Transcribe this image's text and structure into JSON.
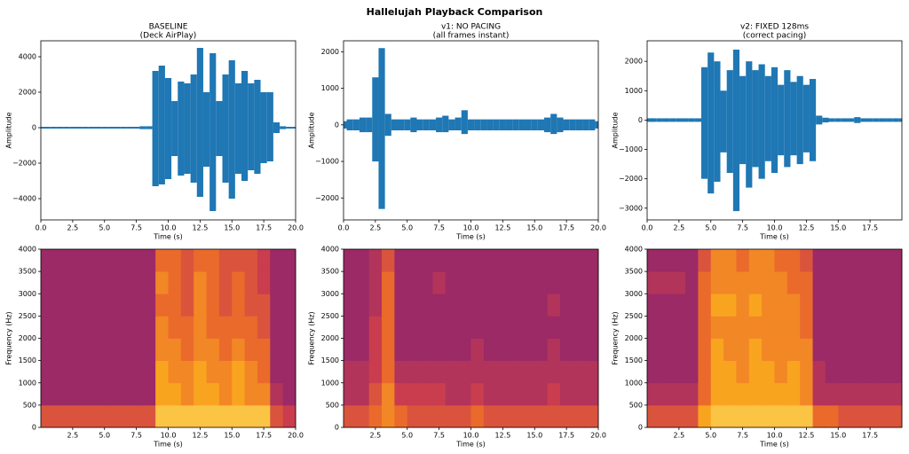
{
  "title": "Hallelujah Playback Comparison",
  "chart_data": [
    {
      "type": "envelope",
      "title": "BASELINE",
      "subtitle": "(Deck AirPlay)",
      "x_label": "Time (s)",
      "y_label": "Amplitude",
      "color": "#1f77b4",
      "x": [
        0,
        0.5,
        1,
        1.5,
        2,
        2.5,
        3,
        3.5,
        4,
        4.5,
        5,
        5.5,
        6,
        6.5,
        7,
        7.5,
        8,
        8.5,
        9,
        9.5,
        10,
        10.5,
        11,
        11.5,
        12,
        12.5,
        13,
        13.5,
        14,
        14.5,
        15,
        15.5,
        16,
        16.5,
        17,
        17.5,
        18,
        18.5,
        19,
        19.5,
        20
      ],
      "upper": [
        50,
        50,
        50,
        50,
        50,
        50,
        50,
        50,
        50,
        50,
        50,
        50,
        50,
        50,
        50,
        50,
        80,
        80,
        3200,
        3500,
        2800,
        1500,
        2600,
        2500,
        3000,
        4500,
        2000,
        4200,
        1500,
        3000,
        3800,
        2500,
        3200,
        2500,
        2700,
        2000,
        2000,
        300,
        80,
        50,
        50
      ],
      "lower": [
        -50,
        -50,
        -50,
        -50,
        -50,
        -50,
        -50,
        -50,
        -50,
        -50,
        -50,
        -50,
        -50,
        -50,
        -50,
        -50,
        -80,
        -80,
        -3300,
        -3200,
        -2900,
        -1600,
        -2700,
        -2600,
        -3100,
        -3900,
        -2200,
        -4700,
        -1600,
        -3100,
        -4000,
        -2600,
        -3000,
        -2400,
        -2600,
        -2000,
        -1900,
        -300,
        -80,
        -50,
        -50
      ],
      "xlim": [
        0,
        20
      ],
      "ylim": [
        -5200,
        4900
      ],
      "xticks": [
        {
          "value": 0,
          "label": "0.0"
        },
        {
          "value": 2.5,
          "label": "2.5"
        },
        {
          "value": 5,
          "label": "5.0"
        },
        {
          "value": 7.5,
          "label": "7.5"
        },
        {
          "value": 10,
          "label": "10.0"
        },
        {
          "value": 12.5,
          "label": "12.5"
        },
        {
          "value": 15,
          "label": "15.0"
        },
        {
          "value": 17.5,
          "label": "17.5"
        },
        {
          "value": 20,
          "label": "20.0"
        }
      ],
      "yticks": [
        {
          "value": -4000,
          "label": "−4000"
        },
        {
          "value": -2000,
          "label": "−2000"
        },
        0,
        2000,
        4000
      ]
    },
    {
      "type": "envelope",
      "title": "v1: NO PACING",
      "subtitle": "(all frames instant)",
      "x_label": "Time (s)",
      "y_label": "Amplitude",
      "color": "#1f77b4",
      "x": [
        0,
        0.5,
        1,
        1.5,
        2,
        2.5,
        3,
        3.5,
        4,
        4.5,
        5,
        5.5,
        6,
        6.5,
        7,
        7.5,
        8,
        8.5,
        9,
        9.5,
        10,
        10.5,
        11,
        11.5,
        12,
        12.5,
        13,
        13.5,
        14,
        14.5,
        15,
        15.5,
        16,
        16.5,
        17,
        17.5,
        18,
        18.5,
        19,
        19.5,
        20
      ],
      "upper": [
        100,
        150,
        150,
        200,
        200,
        1300,
        2100,
        300,
        150,
        150,
        150,
        200,
        150,
        150,
        150,
        200,
        250,
        150,
        200,
        400,
        150,
        150,
        150,
        150,
        150,
        150,
        150,
        150,
        150,
        150,
        150,
        150,
        200,
        300,
        200,
        150,
        150,
        150,
        150,
        150,
        100
      ],
      "lower": [
        -100,
        -150,
        -150,
        -200,
        -200,
        -1000,
        -2300,
        -300,
        -150,
        -150,
        -150,
        -200,
        -150,
        -150,
        -150,
        -200,
        -200,
        -150,
        -150,
        -250,
        -150,
        -150,
        -150,
        -150,
        -150,
        -150,
        -150,
        -150,
        -150,
        -150,
        -150,
        -150,
        -200,
        -250,
        -200,
        -150,
        -150,
        -150,
        -150,
        -150,
        -100
      ],
      "xlim": [
        0,
        20
      ],
      "ylim": [
        -2600,
        2300
      ],
      "xticks": [
        {
          "value": 0,
          "label": "0.0"
        },
        {
          "value": 2.5,
          "label": "2.5"
        },
        {
          "value": 5,
          "label": "5.0"
        },
        {
          "value": 7.5,
          "label": "7.5"
        },
        {
          "value": 10,
          "label": "10.0"
        },
        {
          "value": 12.5,
          "label": "12.5"
        },
        {
          "value": 15,
          "label": "15.0"
        },
        {
          "value": 17.5,
          "label": "17.5"
        },
        {
          "value": 20,
          "label": "20.0"
        }
      ],
      "yticks": [
        {
          "value": -2000,
          "label": "−2000"
        },
        {
          "value": -1000,
          "label": "−1000"
        },
        0,
        1000,
        2000
      ]
    },
    {
      "type": "envelope",
      "title": "v2: FIXED 128ms",
      "subtitle": "(correct pacing)",
      "x_label": "Time (s)",
      "y_label": "Amplitude",
      "color": "#1f77b4",
      "x": [
        0,
        0.5,
        1,
        1.5,
        2,
        2.5,
        3,
        3.5,
        4,
        4.5,
        5,
        5.5,
        6,
        6.5,
        7,
        7.5,
        8,
        8.5,
        9,
        9.5,
        10,
        10.5,
        11,
        11.5,
        12,
        12.5,
        13,
        13.5,
        14,
        14.5,
        15,
        15.5,
        16,
        16.5,
        17,
        17.5,
        18,
        18.5,
        19,
        19.5,
        20
      ],
      "upper": [
        60,
        60,
        60,
        60,
        60,
        60,
        60,
        60,
        60,
        1800,
        2300,
        2000,
        1000,
        1700,
        2400,
        1500,
        2000,
        1700,
        1900,
        1500,
        1800,
        1200,
        1700,
        1300,
        1500,
        1200,
        1400,
        150,
        80,
        60,
        60,
        60,
        60,
        100,
        60,
        60,
        60,
        60,
        60,
        60,
        60
      ],
      "lower": [
        -60,
        -60,
        -60,
        -60,
        -60,
        -60,
        -60,
        -60,
        -60,
        -2000,
        -2500,
        -2100,
        -1100,
        -1800,
        -3100,
        -1500,
        -2300,
        -1600,
        -2000,
        -1400,
        -1800,
        -1200,
        -1600,
        -1200,
        -1500,
        -1100,
        -1400,
        -150,
        -80,
        -60,
        -60,
        -60,
        -60,
        -100,
        -60,
        -60,
        -60,
        -60,
        -60,
        -60,
        -60
      ],
      "xlim": [
        0,
        20
      ],
      "ylim": [
        -3400,
        2700
      ],
      "xticks": [
        {
          "value": 0,
          "label": "0.0"
        },
        {
          "value": 2.5,
          "label": "2.5"
        },
        {
          "value": 5,
          "label": "5.0"
        },
        {
          "value": 7.5,
          "label": "7.5"
        },
        {
          "value": 10,
          "label": "10.0"
        },
        {
          "value": 12.5,
          "label": "12.5"
        },
        {
          "value": 15,
          "label": "15.0"
        },
        {
          "value": 17.5,
          "label": "17.5"
        }
      ],
      "yticks": [
        {
          "value": -3000,
          "label": "−3000"
        },
        {
          "value": -2000,
          "label": "−2000"
        },
        {
          "value": -1000,
          "label": "−1000"
        },
        0,
        1000,
        2000
      ]
    },
    {
      "type": "heatmap",
      "x_label": "Time (s)",
      "y_label": "Frequency (Hz)",
      "colors": [
        "#6d2273",
        "#9b2a66",
        "#c93d4e",
        "#ea6a2c",
        "#f9a41f",
        "#fde36b"
      ],
      "xlim": [
        0,
        20
      ],
      "ylim": [
        0,
        4000
      ],
      "xticks": [
        {
          "value": 2.5,
          "label": "2.5"
        },
        {
          "value": 5,
          "label": "5.0"
        },
        {
          "value": 7.5,
          "label": "7.5"
        },
        {
          "value": 10,
          "label": "10.0"
        },
        {
          "value": 12.5,
          "label": "12.5"
        },
        {
          "value": 15,
          "label": "15.0"
        },
        {
          "value": 17.5,
          "label": "17.5"
        },
        {
          "value": 20,
          "label": "20.0"
        }
      ],
      "yticks": [
        0,
        500,
        1000,
        1500,
        2000,
        2500,
        3000,
        3500,
        4000
      ],
      "z": [
        [
          5,
          5,
          5,
          5,
          5,
          5,
          5,
          5,
          5,
          9,
          9,
          9,
          9,
          9,
          9,
          9,
          9,
          9,
          5,
          4
        ],
        [
          2,
          2,
          2,
          2,
          2,
          2,
          2,
          2,
          2,
          8,
          8,
          7,
          8,
          8,
          7,
          8,
          7,
          7,
          3,
          2
        ],
        [
          2,
          2,
          2,
          2,
          2,
          2,
          2,
          2,
          2,
          8,
          7,
          7,
          8,
          7,
          7,
          8,
          7,
          6,
          2,
          2
        ],
        [
          2,
          2,
          2,
          2,
          2,
          2,
          2,
          2,
          2,
          7,
          7,
          6,
          7,
          7,
          6,
          7,
          6,
          6,
          2,
          2
        ],
        [
          2,
          2,
          2,
          2,
          2,
          2,
          2,
          2,
          2,
          7,
          6,
          6,
          7,
          6,
          6,
          6,
          6,
          5,
          2,
          2
        ],
        [
          2,
          2,
          2,
          2,
          2,
          2,
          2,
          2,
          2,
          6,
          6,
          5,
          7,
          6,
          5,
          6,
          5,
          5,
          2,
          2
        ],
        [
          2,
          2,
          2,
          2,
          2,
          2,
          2,
          2,
          2,
          7,
          6,
          5,
          7,
          6,
          5,
          6,
          5,
          4,
          2,
          2
        ],
        [
          2,
          2,
          2,
          2,
          2,
          2,
          2,
          2,
          2,
          6,
          6,
          5,
          6,
          6,
          5,
          5,
          5,
          4,
          2,
          2
        ]
      ]
    },
    {
      "type": "heatmap",
      "x_label": "Time (s)",
      "y_label": "Frequency (Hz)",
      "colors": [
        "#6d2273",
        "#9b2a66",
        "#c93d4e",
        "#ea6a2c",
        "#f9a41f",
        "#fde36b"
      ],
      "xlim": [
        0,
        20
      ],
      "ylim": [
        0,
        4000
      ],
      "xticks": [
        {
          "value": 2.5,
          "label": "2.5"
        },
        {
          "value": 5,
          "label": "5.0"
        },
        {
          "value": 7.5,
          "label": "7.5"
        },
        {
          "value": 10,
          "label": "10.0"
        },
        {
          "value": 12.5,
          "label": "12.5"
        },
        {
          "value": 15,
          "label": "15.0"
        },
        {
          "value": 17.5,
          "label": "17.5"
        },
        {
          "value": 20,
          "label": "20.0"
        }
      ],
      "yticks": [
        0,
        500,
        1000,
        1500,
        2000,
        2500,
        3000,
        3500,
        4000
      ],
      "z": [
        [
          5,
          5,
          6,
          7,
          6,
          5,
          5,
          5,
          5,
          5,
          6,
          5,
          5,
          5,
          5,
          5,
          5,
          5,
          5,
          5
        ],
        [
          3,
          3,
          5,
          7,
          4,
          4,
          4,
          4,
          3,
          3,
          4,
          3,
          3,
          3,
          3,
          3,
          4,
          3,
          3,
          3
        ],
        [
          3,
          3,
          4,
          6,
          3,
          3,
          3,
          3,
          3,
          3,
          3,
          3,
          3,
          3,
          3,
          3,
          3,
          3,
          3,
          3
        ],
        [
          2,
          2,
          4,
          6,
          2,
          2,
          2,
          2,
          2,
          2,
          3,
          2,
          2,
          2,
          2,
          2,
          3,
          2,
          2,
          2
        ],
        [
          2,
          2,
          4,
          6,
          2,
          2,
          2,
          2,
          2,
          2,
          2,
          2,
          2,
          2,
          2,
          2,
          2,
          2,
          2,
          2
        ],
        [
          2,
          2,
          3,
          6,
          2,
          2,
          2,
          2,
          2,
          2,
          2,
          2,
          2,
          2,
          2,
          2,
          3,
          2,
          2,
          2
        ],
        [
          2,
          2,
          3,
          6,
          2,
          2,
          2,
          3,
          2,
          2,
          2,
          2,
          2,
          2,
          2,
          2,
          2,
          2,
          2,
          2
        ],
        [
          2,
          2,
          3,
          5,
          2,
          2,
          2,
          2,
          2,
          2,
          2,
          2,
          2,
          2,
          2,
          2,
          2,
          2,
          2,
          2
        ]
      ]
    },
    {
      "type": "heatmap",
      "x_label": "Time (s)",
      "y_label": "Frequency (Hz)",
      "colors": [
        "#6d2273",
        "#9b2a66",
        "#c93d4e",
        "#ea6a2c",
        "#f9a41f",
        "#fde36b"
      ],
      "xlim": [
        0,
        20
      ],
      "ylim": [
        0,
        4000
      ],
      "xticks": [
        {
          "value": 2.5,
          "label": "2.5"
        },
        {
          "value": 5,
          "label": "5.0"
        },
        {
          "value": 7.5,
          "label": "7.5"
        },
        {
          "value": 10,
          "label": "10.0"
        },
        {
          "value": 12.5,
          "label": "12.5"
        },
        {
          "value": 15,
          "label": "15.0"
        },
        {
          "value": 17.5,
          "label": "17.5"
        }
      ],
      "yticks": [
        0,
        500,
        1000,
        1500,
        2000,
        2500,
        3000,
        3500,
        4000
      ],
      "z": [
        [
          5,
          5,
          5,
          5,
          8,
          9,
          9,
          9,
          9,
          9,
          9,
          9,
          9,
          6,
          6,
          5,
          5,
          5,
          5,
          5
        ],
        [
          3,
          3,
          3,
          3,
          6,
          8,
          8,
          8,
          8,
          8,
          8,
          8,
          7,
          3,
          3,
          3,
          3,
          3,
          3,
          3
        ],
        [
          2,
          2,
          2,
          2,
          6,
          8,
          8,
          7,
          8,
          8,
          7,
          8,
          7,
          3,
          2,
          2,
          2,
          2,
          2,
          2
        ],
        [
          2,
          2,
          2,
          2,
          6,
          8,
          7,
          7,
          8,
          7,
          7,
          7,
          7,
          2,
          2,
          2,
          2,
          2,
          2,
          2
        ],
        [
          2,
          2,
          2,
          2,
          6,
          7,
          7,
          7,
          7,
          7,
          7,
          7,
          6,
          2,
          2,
          2,
          2,
          2,
          2,
          2
        ],
        [
          2,
          2,
          2,
          2,
          6,
          8,
          8,
          7,
          8,
          7,
          7,
          7,
          6,
          2,
          2,
          2,
          2,
          2,
          2,
          2
        ],
        [
          3,
          3,
          3,
          2,
          6,
          7,
          7,
          7,
          7,
          7,
          7,
          6,
          6,
          2,
          2,
          2,
          2,
          2,
          2,
          2
        ],
        [
          2,
          2,
          2,
          2,
          5,
          7,
          7,
          6,
          7,
          7,
          6,
          6,
          5,
          2,
          2,
          2,
          2,
          2,
          2,
          2
        ]
      ]
    }
  ]
}
